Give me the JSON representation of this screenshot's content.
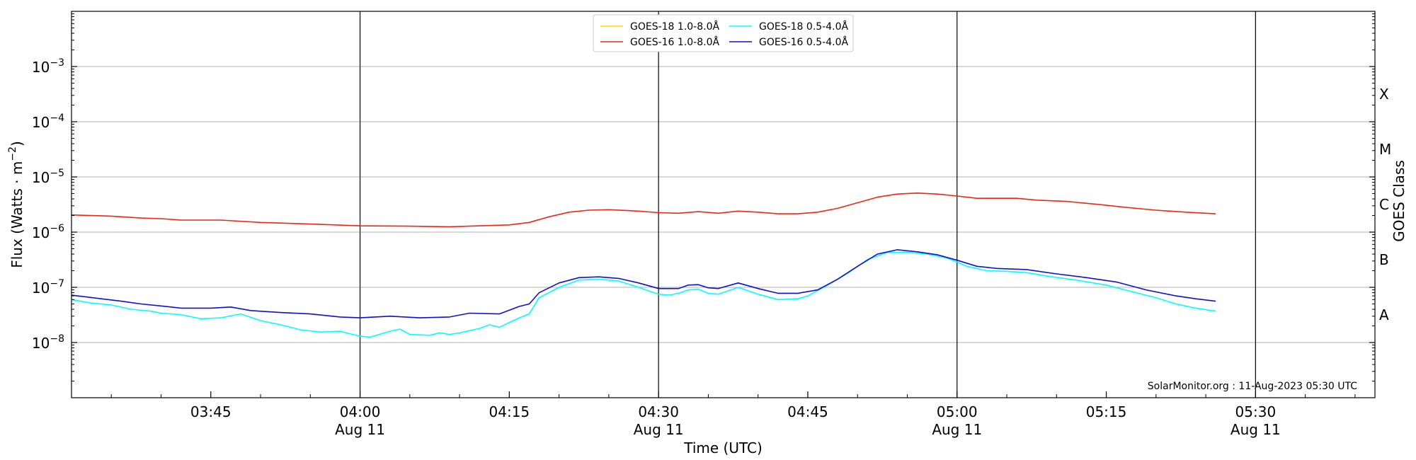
{
  "chart_data": {
    "type": "line",
    "xlabel": "Time (UTC)",
    "ylabel": "Flux (Watts · m",
    "ylabel_sup": "−2",
    "ylabel_close": ")",
    "right_label": "GOES Class",
    "yscale": "log",
    "ylim": [
      1e-09,
      0.01
    ],
    "y_ticks": [
      {
        "value": 1e-08,
        "base": "10",
        "exp": "−8"
      },
      {
        "value": 1e-07,
        "base": "10",
        "exp": "−7"
      },
      {
        "value": 1e-06,
        "base": "10",
        "exp": "−6"
      },
      {
        "value": 1e-05,
        "base": "10",
        "exp": "−5"
      },
      {
        "value": 0.0001,
        "base": "10",
        "exp": "−4"
      },
      {
        "value": 0.001,
        "base": "10",
        "exp": "−3"
      }
    ],
    "classes": [
      {
        "label": "A",
        "value": 3.16e-08
      },
      {
        "label": "B",
        "value": 3.16e-07
      },
      {
        "label": "C",
        "value": 3.16e-06
      },
      {
        "label": "M",
        "value": 3.16e-05
      },
      {
        "label": "X",
        "value": 0.000316
      }
    ],
    "xlim": [
      "2023-08-11 03:31",
      "2023-08-11 05:42"
    ],
    "x_ticks": [
      {
        "time": "03:45",
        "label": "03:45",
        "date": ""
      },
      {
        "time": "04:00",
        "label": "04:00",
        "date": "Aug 11"
      },
      {
        "time": "04:15",
        "label": "04:15",
        "date": ""
      },
      {
        "time": "04:30",
        "label": "04:30",
        "date": "Aug 11"
      },
      {
        "time": "04:45",
        "label": "04:45",
        "date": ""
      },
      {
        "time": "05:00",
        "label": "05:00",
        "date": "Aug 11"
      },
      {
        "time": "05:15",
        "label": "05:15",
        "date": ""
      },
      {
        "time": "05:30",
        "label": "05:30",
        "date": "Aug 11"
      }
    ],
    "vertical_lines": [
      "04:00",
      "04:30",
      "05:00",
      "05:30"
    ],
    "grid": "horizontal",
    "legend_position": "top-center",
    "legend": [
      {
        "name": "GOES-18 1.0-8.0Å",
        "color": "#FFD700"
      },
      {
        "name": "GOES-16 1.0-8.0Å",
        "color": "#E8281A"
      },
      {
        "name": "GOES-18 0.5-4.0Å",
        "color": "#00FFFF"
      },
      {
        "name": "GOES-16 0.5-4.0Å",
        "color": "#1010D0"
      }
    ],
    "annotation": "SolarMonitor.org : 11-Aug-2023 05:30 UTC",
    "series": [
      {
        "name": "GOES-18 1.0-8.0Å",
        "color": "#FFD700",
        "points": []
      },
      {
        "name": "GOES-16 1.0-8.0Å",
        "color": "#E8281A",
        "points": [
          [
            "03:31",
            2.05e-06
          ],
          [
            "03:35",
            1.95e-06
          ],
          [
            "03:38",
            1.8e-06
          ],
          [
            "03:40",
            1.75e-06
          ],
          [
            "03:42",
            1.65e-06
          ],
          [
            "03:46",
            1.65e-06
          ],
          [
            "03:50",
            1.5e-06
          ],
          [
            "03:55",
            1.4e-06
          ],
          [
            "04:00",
            1.3e-06
          ],
          [
            "04:05",
            1.28e-06
          ],
          [
            "04:09",
            1.25e-06
          ],
          [
            "04:12",
            1.3e-06
          ],
          [
            "04:15",
            1.35e-06
          ],
          [
            "04:17",
            1.5e-06
          ],
          [
            "04:19",
            1.9e-06
          ],
          [
            "04:21",
            2.3e-06
          ],
          [
            "04:23",
            2.5e-06
          ],
          [
            "04:25",
            2.55e-06
          ],
          [
            "04:28",
            2.4e-06
          ],
          [
            "04:30",
            2.25e-06
          ],
          [
            "04:32",
            2.2e-06
          ],
          [
            "04:34",
            2.35e-06
          ],
          [
            "04:36",
            2.2e-06
          ],
          [
            "04:38",
            2.4e-06
          ],
          [
            "04:40",
            2.3e-06
          ],
          [
            "04:42",
            2.15e-06
          ],
          [
            "04:44",
            2.15e-06
          ],
          [
            "04:46",
            2.3e-06
          ],
          [
            "04:48",
            2.7e-06
          ],
          [
            "04:50",
            3.4e-06
          ],
          [
            "04:52",
            4.3e-06
          ],
          [
            "04:54",
            4.9e-06
          ],
          [
            "04:56",
            5.1e-06
          ],
          [
            "04:58",
            4.9e-06
          ],
          [
            "05:00",
            4.5e-06
          ],
          [
            "05:02",
            4.1e-06
          ],
          [
            "05:04",
            4.1e-06
          ],
          [
            "05:06",
            4.1e-06
          ],
          [
            "05:08",
            3.8e-06
          ],
          [
            "05:11",
            3.6e-06
          ],
          [
            "05:14",
            3.2e-06
          ],
          [
            "05:17",
            2.8e-06
          ],
          [
            "05:20",
            2.5e-06
          ],
          [
            "05:23",
            2.3e-06
          ],
          [
            "05:26",
            2.15e-06
          ]
        ]
      },
      {
        "name": "GOES-18 0.5-4.0Å",
        "color": "#00FFFF",
        "points": [
          [
            "03:31",
            6e-08
          ],
          [
            "03:33",
            5.2e-08
          ],
          [
            "03:35",
            4.8e-08
          ],
          [
            "03:37",
            4e-08
          ],
          [
            "03:39",
            3.7e-08
          ],
          [
            "03:40",
            3.4e-08
          ],
          [
            "03:42",
            3.2e-08
          ],
          [
            "03:44",
            2.7e-08
          ],
          [
            "03:46",
            2.8e-08
          ],
          [
            "03:48",
            3.3e-08
          ],
          [
            "03:50",
            2.5e-08
          ],
          [
            "03:52",
            2.1e-08
          ],
          [
            "03:54",
            1.7e-08
          ],
          [
            "03:56",
            1.55e-08
          ],
          [
            "03:58",
            1.6e-08
          ],
          [
            "04:00",
            1.3e-08
          ],
          [
            "04:01",
            1.25e-08
          ],
          [
            "04:03",
            1.6e-08
          ],
          [
            "04:04",
            1.75e-08
          ],
          [
            "04:05",
            1.4e-08
          ],
          [
            "04:07",
            1.35e-08
          ],
          [
            "04:08",
            1.5e-08
          ],
          [
            "04:09",
            1.4e-08
          ],
          [
            "04:10",
            1.5e-08
          ],
          [
            "04:12",
            1.8e-08
          ],
          [
            "04:13",
            2.1e-08
          ],
          [
            "04:14",
            1.9e-08
          ],
          [
            "04:16",
            2.8e-08
          ],
          [
            "04:17",
            3.3e-08
          ],
          [
            "04:18",
            6.5e-08
          ],
          [
            "04:20",
            1e-07
          ],
          [
            "04:22",
            1.35e-07
          ],
          [
            "04:24",
            1.4e-07
          ],
          [
            "04:26",
            1.3e-07
          ],
          [
            "04:28",
            1e-07
          ],
          [
            "04:30",
            7.5e-08
          ],
          [
            "04:31",
            7.2e-08
          ],
          [
            "04:32",
            7.8e-08
          ],
          [
            "04:33",
            9e-08
          ],
          [
            "04:34",
            9.2e-08
          ],
          [
            "04:35",
            7.8e-08
          ],
          [
            "04:36",
            7.5e-08
          ],
          [
            "04:38",
            1e-07
          ],
          [
            "04:40",
            7.5e-08
          ],
          [
            "04:42",
            6e-08
          ],
          [
            "04:44",
            6.2e-08
          ],
          [
            "04:45",
            7e-08
          ],
          [
            "04:47",
            1.1e-07
          ],
          [
            "04:49",
            1.8e-07
          ],
          [
            "04:51",
            3.2e-07
          ],
          [
            "04:53",
            4.3e-07
          ],
          [
            "04:55",
            4.3e-07
          ],
          [
            "04:57",
            4e-07
          ],
          [
            "04:59",
            3.4e-07
          ],
          [
            "05:01",
            2.4e-07
          ],
          [
            "05:03",
            2e-07
          ],
          [
            "05:05",
            1.95e-07
          ],
          [
            "05:07",
            1.85e-07
          ],
          [
            "05:09",
            1.6e-07
          ],
          [
            "05:12",
            1.35e-07
          ],
          [
            "05:15",
            1.1e-07
          ],
          [
            "05:18",
            8e-08
          ],
          [
            "05:20",
            6.5e-08
          ],
          [
            "05:22",
            5e-08
          ],
          [
            "05:24",
            4.2e-08
          ],
          [
            "05:26",
            3.7e-08
          ]
        ]
      },
      {
        "name": "GOES-16 0.5-4.0Å",
        "color": "#1010D0",
        "points": [
          [
            "03:31",
            7.2e-08
          ],
          [
            "03:34",
            6.2e-08
          ],
          [
            "03:36",
            5.6e-08
          ],
          [
            "03:38",
            5e-08
          ],
          [
            "03:40",
            4.6e-08
          ],
          [
            "03:42",
            4.2e-08
          ],
          [
            "03:45",
            4.2e-08
          ],
          [
            "03:47",
            4.4e-08
          ],
          [
            "03:49",
            3.8e-08
          ],
          [
            "03:52",
            3.5e-08
          ],
          [
            "03:55",
            3.3e-08
          ],
          [
            "03:58",
            2.9e-08
          ],
          [
            "04:00",
            2.8e-08
          ],
          [
            "04:03",
            3e-08
          ],
          [
            "04:06",
            2.8e-08
          ],
          [
            "04:09",
            2.9e-08
          ],
          [
            "04:11",
            3.4e-08
          ],
          [
            "04:14",
            3.3e-08
          ],
          [
            "04:16",
            4.5e-08
          ],
          [
            "04:17",
            5e-08
          ],
          [
            "04:18",
            8e-08
          ],
          [
            "04:20",
            1.2e-07
          ],
          [
            "04:22",
            1.5e-07
          ],
          [
            "04:24",
            1.55e-07
          ],
          [
            "04:26",
            1.45e-07
          ],
          [
            "04:28",
            1.2e-07
          ],
          [
            "04:30",
            9.5e-08
          ],
          [
            "04:32",
            9.5e-08
          ],
          [
            "04:33",
            1.1e-07
          ],
          [
            "04:34",
            1.12e-07
          ],
          [
            "04:35",
            9.8e-08
          ],
          [
            "04:36",
            9.5e-08
          ],
          [
            "04:38",
            1.2e-07
          ],
          [
            "04:40",
            9.5e-08
          ],
          [
            "04:42",
            7.8e-08
          ],
          [
            "04:44",
            7.8e-08
          ],
          [
            "04:46",
            9e-08
          ],
          [
            "04:48",
            1.4e-07
          ],
          [
            "04:50",
            2.4e-07
          ],
          [
            "04:52",
            4e-07
          ],
          [
            "04:54",
            4.8e-07
          ],
          [
            "04:56",
            4.4e-07
          ],
          [
            "04:58",
            3.9e-07
          ],
          [
            "05:00",
            3.1e-07
          ],
          [
            "05:02",
            2.4e-07
          ],
          [
            "05:04",
            2.2e-07
          ],
          [
            "05:07",
            2.1e-07
          ],
          [
            "05:10",
            1.75e-07
          ],
          [
            "05:13",
            1.5e-07
          ],
          [
            "05:16",
            1.25e-07
          ],
          [
            "05:19",
            9e-08
          ],
          [
            "05:22",
            7e-08
          ],
          [
            "05:24",
            6.2e-08
          ],
          [
            "05:26",
            5.6e-08
          ]
        ]
      }
    ]
  }
}
